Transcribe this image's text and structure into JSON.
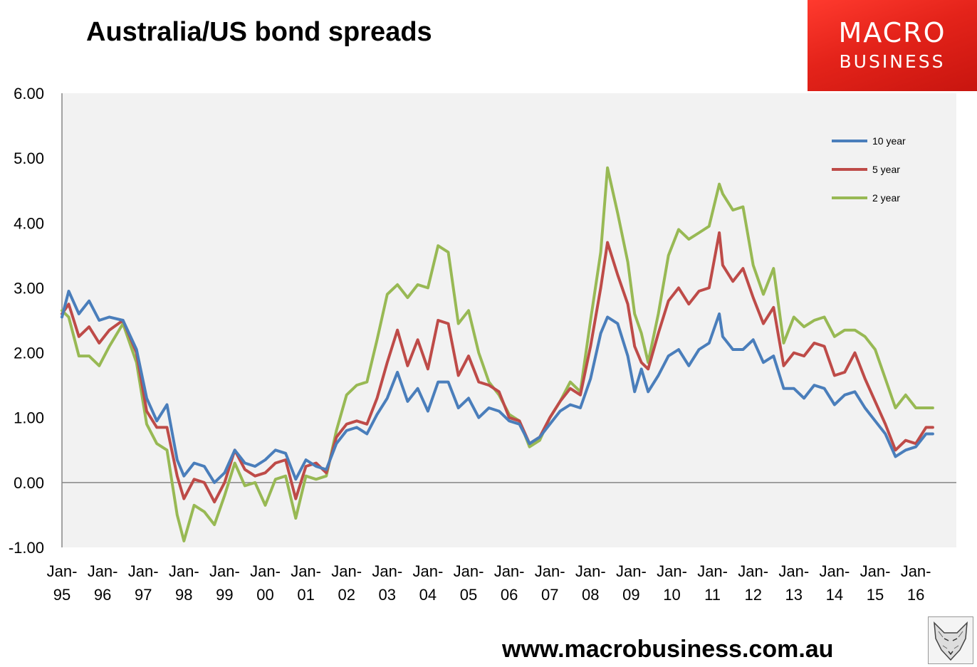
{
  "title": "Australia/US bond spreads",
  "logo": {
    "line1": "MACRO",
    "line2": "BUSINESS"
  },
  "footer_url": "www.macrobusiness.com.au",
  "colors": {
    "series_10y": "#4a7ebb",
    "series_5y": "#be4b48",
    "series_2y": "#98b954",
    "plot_bg": "#f2f2f2",
    "brand_red": "#e4231a"
  },
  "chart_data": {
    "type": "line",
    "title": "Australia/US bond spreads",
    "ylim": [
      -1,
      6
    ],
    "yticks": [
      "6.00",
      "5.00",
      "4.00",
      "3.00",
      "2.00",
      "1.00",
      "0.00",
      "-1.00"
    ],
    "ytick_values": [
      6,
      5,
      4,
      3,
      2,
      1,
      0,
      -1
    ],
    "xticks": [
      {
        "top": "Jan-",
        "bottom": "95"
      },
      {
        "top": "Jan-",
        "bottom": "96"
      },
      {
        "top": "Jan-",
        "bottom": "97"
      },
      {
        "top": "Jan-",
        "bottom": "98"
      },
      {
        "top": "Jan-",
        "bottom": "99"
      },
      {
        "top": "Jan-",
        "bottom": "00"
      },
      {
        "top": "Jan-",
        "bottom": "01"
      },
      {
        "top": "Jan-",
        "bottom": "02"
      },
      {
        "top": "Jan-",
        "bottom": "03"
      },
      {
        "top": "Jan-",
        "bottom": "04"
      },
      {
        "top": "Jan-",
        "bottom": "05"
      },
      {
        "top": "Jan-",
        "bottom": "06"
      },
      {
        "top": "Jan-",
        "bottom": "07"
      },
      {
        "top": "Jan-",
        "bottom": "08"
      },
      {
        "top": "Jan-",
        "bottom": "09"
      },
      {
        "top": "Jan-",
        "bottom": "10"
      },
      {
        "top": "Jan-",
        "bottom": "11"
      },
      {
        "top": "Jan-",
        "bottom": "12"
      },
      {
        "top": "Jan-",
        "bottom": "13"
      },
      {
        "top": "Jan-",
        "bottom": "14"
      },
      {
        "top": "Jan-",
        "bottom": "15"
      },
      {
        "top": "Jan-",
        "bottom": "16"
      }
    ],
    "legend_position": "top-right",
    "grid": false,
    "series": [
      {
        "name": "10 year",
        "color": "#4a7ebb",
        "points": [
          [
            "1995-01",
            2.55
          ],
          [
            "1995-03",
            2.95
          ],
          [
            "1995-06",
            2.6
          ],
          [
            "1995-09",
            2.8
          ],
          [
            "1995-12",
            2.5
          ],
          [
            "1996-03",
            2.55
          ],
          [
            "1996-07",
            2.5
          ],
          [
            "1996-11",
            2.05
          ],
          [
            "1997-02",
            1.3
          ],
          [
            "1997-05",
            0.95
          ],
          [
            "1997-08",
            1.2
          ],
          [
            "1997-11",
            0.35
          ],
          [
            "1998-01",
            0.1
          ],
          [
            "1998-04",
            0.3
          ],
          [
            "1998-07",
            0.25
          ],
          [
            "1998-10",
            0.0
          ],
          [
            "1999-01",
            0.15
          ],
          [
            "1999-04",
            0.5
          ],
          [
            "1999-07",
            0.3
          ],
          [
            "1999-10",
            0.25
          ],
          [
            "2000-01",
            0.35
          ],
          [
            "2000-04",
            0.5
          ],
          [
            "2000-07",
            0.45
          ],
          [
            "2000-10",
            0.05
          ],
          [
            "2001-01",
            0.35
          ],
          [
            "2001-04",
            0.25
          ],
          [
            "2001-07",
            0.2
          ],
          [
            "2001-10",
            0.6
          ],
          [
            "2002-01",
            0.8
          ],
          [
            "2002-04",
            0.85
          ],
          [
            "2002-07",
            0.75
          ],
          [
            "2002-10",
            1.05
          ],
          [
            "2003-01",
            1.3
          ],
          [
            "2003-04",
            1.7
          ],
          [
            "2003-07",
            1.25
          ],
          [
            "2003-10",
            1.45
          ],
          [
            "2004-01",
            1.1
          ],
          [
            "2004-04",
            1.55
          ],
          [
            "2004-07",
            1.55
          ],
          [
            "2004-10",
            1.15
          ],
          [
            "2005-01",
            1.3
          ],
          [
            "2005-04",
            1.0
          ],
          [
            "2005-07",
            1.15
          ],
          [
            "2005-10",
            1.1
          ],
          [
            "2006-01",
            0.95
          ],
          [
            "2006-04",
            0.9
          ],
          [
            "2006-07",
            0.6
          ],
          [
            "2006-10",
            0.7
          ],
          [
            "2007-01",
            0.9
          ],
          [
            "2007-04",
            1.1
          ],
          [
            "2007-07",
            1.2
          ],
          [
            "2007-10",
            1.15
          ],
          [
            "2008-01",
            1.6
          ],
          [
            "2008-04",
            2.3
          ],
          [
            "2008-06",
            2.55
          ],
          [
            "2008-09",
            2.45
          ],
          [
            "2008-12",
            1.95
          ],
          [
            "2009-02",
            1.4
          ],
          [
            "2009-04",
            1.75
          ],
          [
            "2009-06",
            1.4
          ],
          [
            "2009-09",
            1.65
          ],
          [
            "2009-12",
            1.95
          ],
          [
            "2010-03",
            2.05
          ],
          [
            "2010-06",
            1.8
          ],
          [
            "2010-09",
            2.05
          ],
          [
            "2010-12",
            2.15
          ],
          [
            "2011-03",
            2.6
          ],
          [
            "2011-04",
            2.25
          ],
          [
            "2011-07",
            2.05
          ],
          [
            "2011-10",
            2.05
          ],
          [
            "2012-01",
            2.2
          ],
          [
            "2012-04",
            1.85
          ],
          [
            "2012-07",
            1.95
          ],
          [
            "2012-10",
            1.45
          ],
          [
            "2013-01",
            1.45
          ],
          [
            "2013-04",
            1.3
          ],
          [
            "2013-07",
            1.5
          ],
          [
            "2013-10",
            1.45
          ],
          [
            "2014-01",
            1.2
          ],
          [
            "2014-04",
            1.35
          ],
          [
            "2014-07",
            1.4
          ],
          [
            "2014-10",
            1.15
          ],
          [
            "2015-01",
            0.95
          ],
          [
            "2015-04",
            0.75
          ],
          [
            "2015-07",
            0.4
          ],
          [
            "2015-10",
            0.5
          ],
          [
            "2016-01",
            0.55
          ],
          [
            "2016-04",
            0.75
          ],
          [
            "2016-06",
            0.75
          ]
        ]
      },
      {
        "name": "5 year",
        "color": "#be4b48",
        "points": [
          [
            "1995-01",
            2.6
          ],
          [
            "1995-03",
            2.75
          ],
          [
            "1995-06",
            2.25
          ],
          [
            "1995-09",
            2.4
          ],
          [
            "1995-12",
            2.15
          ],
          [
            "1996-03",
            2.35
          ],
          [
            "1996-07",
            2.5
          ],
          [
            "1996-11",
            2.0
          ],
          [
            "1997-02",
            1.1
          ],
          [
            "1997-05",
            0.85
          ],
          [
            "1997-08",
            0.85
          ],
          [
            "1997-11",
            0.1
          ],
          [
            "1998-01",
            -0.25
          ],
          [
            "1998-04",
            0.05
          ],
          [
            "1998-07",
            0.0
          ],
          [
            "1998-10",
            -0.3
          ],
          [
            "1999-01",
            0.0
          ],
          [
            "1999-04",
            0.5
          ],
          [
            "1999-07",
            0.2
          ],
          [
            "1999-10",
            0.1
          ],
          [
            "2000-01",
            0.15
          ],
          [
            "2000-04",
            0.3
          ],
          [
            "2000-07",
            0.35
          ],
          [
            "2000-10",
            -0.25
          ],
          [
            "2001-01",
            0.25
          ],
          [
            "2001-04",
            0.3
          ],
          [
            "2001-07",
            0.15
          ],
          [
            "2001-10",
            0.7
          ],
          [
            "2002-01",
            0.9
          ],
          [
            "2002-04",
            0.95
          ],
          [
            "2002-07",
            0.9
          ],
          [
            "2002-10",
            1.3
          ],
          [
            "2003-01",
            1.85
          ],
          [
            "2003-04",
            2.35
          ],
          [
            "2003-07",
            1.8
          ],
          [
            "2003-10",
            2.2
          ],
          [
            "2004-01",
            1.75
          ],
          [
            "2004-04",
            2.5
          ],
          [
            "2004-07",
            2.45
          ],
          [
            "2004-10",
            1.65
          ],
          [
            "2005-01",
            1.95
          ],
          [
            "2005-04",
            1.55
          ],
          [
            "2005-07",
            1.5
          ],
          [
            "2005-10",
            1.4
          ],
          [
            "2006-01",
            1.0
          ],
          [
            "2006-04",
            0.95
          ],
          [
            "2006-07",
            0.6
          ],
          [
            "2006-10",
            0.7
          ],
          [
            "2007-01",
            1.0
          ],
          [
            "2007-04",
            1.25
          ],
          [
            "2007-07",
            1.45
          ],
          [
            "2007-10",
            1.35
          ],
          [
            "2008-01",
            2.1
          ],
          [
            "2008-04",
            3.0
          ],
          [
            "2008-06",
            3.7
          ],
          [
            "2008-09",
            3.2
          ],
          [
            "2008-12",
            2.75
          ],
          [
            "2009-02",
            2.1
          ],
          [
            "2009-04",
            1.85
          ],
          [
            "2009-06",
            1.75
          ],
          [
            "2009-09",
            2.3
          ],
          [
            "2009-12",
            2.8
          ],
          [
            "2010-03",
            3.0
          ],
          [
            "2010-06",
            2.75
          ],
          [
            "2010-09",
            2.95
          ],
          [
            "2010-12",
            3.0
          ],
          [
            "2011-03",
            3.85
          ],
          [
            "2011-04",
            3.35
          ],
          [
            "2011-07",
            3.1
          ],
          [
            "2011-10",
            3.3
          ],
          [
            "2012-01",
            2.85
          ],
          [
            "2012-04",
            2.45
          ],
          [
            "2012-07",
            2.7
          ],
          [
            "2012-10",
            1.8
          ],
          [
            "2013-01",
            2.0
          ],
          [
            "2013-04",
            1.95
          ],
          [
            "2013-07",
            2.15
          ],
          [
            "2013-10",
            2.1
          ],
          [
            "2014-01",
            1.65
          ],
          [
            "2014-04",
            1.7
          ],
          [
            "2014-07",
            2.0
          ],
          [
            "2014-10",
            1.6
          ],
          [
            "2015-01",
            1.25
          ],
          [
            "2015-04",
            0.9
          ],
          [
            "2015-07",
            0.5
          ],
          [
            "2015-10",
            0.65
          ],
          [
            "2016-01",
            0.6
          ],
          [
            "2016-04",
            0.85
          ],
          [
            "2016-06",
            0.85
          ]
        ]
      },
      {
        "name": "2 year",
        "color": "#98b954",
        "points": [
          [
            "1995-01",
            2.65
          ],
          [
            "1995-03",
            2.55
          ],
          [
            "1995-06",
            1.95
          ],
          [
            "1995-09",
            1.95
          ],
          [
            "1995-12",
            1.8
          ],
          [
            "1996-03",
            2.1
          ],
          [
            "1996-07",
            2.45
          ],
          [
            "1996-11",
            1.85
          ],
          [
            "1997-02",
            0.9
          ],
          [
            "1997-05",
            0.6
          ],
          [
            "1997-08",
            0.5
          ],
          [
            "1997-11",
            -0.5
          ],
          [
            "1998-01",
            -0.9
          ],
          [
            "1998-04",
            -0.35
          ],
          [
            "1998-07",
            -0.45
          ],
          [
            "1998-10",
            -0.65
          ],
          [
            "1999-01",
            -0.2
          ],
          [
            "1999-04",
            0.3
          ],
          [
            "1999-07",
            -0.05
          ],
          [
            "1999-10",
            0.0
          ],
          [
            "2000-01",
            -0.35
          ],
          [
            "2000-04",
            0.05
          ],
          [
            "2000-07",
            0.1
          ],
          [
            "2000-10",
            -0.55
          ],
          [
            "2001-01",
            0.1
          ],
          [
            "2001-04",
            0.05
          ],
          [
            "2001-07",
            0.1
          ],
          [
            "2001-10",
            0.8
          ],
          [
            "2002-01",
            1.35
          ],
          [
            "2002-04",
            1.5
          ],
          [
            "2002-07",
            1.55
          ],
          [
            "2002-10",
            2.2
          ],
          [
            "2003-01",
            2.9
          ],
          [
            "2003-04",
            3.05
          ],
          [
            "2003-07",
            2.85
          ],
          [
            "2003-10",
            3.05
          ],
          [
            "2004-01",
            3.0
          ],
          [
            "2004-04",
            3.65
          ],
          [
            "2004-07",
            3.55
          ],
          [
            "2004-10",
            2.45
          ],
          [
            "2005-01",
            2.65
          ],
          [
            "2005-04",
            2.0
          ],
          [
            "2005-07",
            1.55
          ],
          [
            "2005-10",
            1.35
          ],
          [
            "2006-01",
            1.05
          ],
          [
            "2006-04",
            0.95
          ],
          [
            "2006-07",
            0.55
          ],
          [
            "2006-10",
            0.65
          ],
          [
            "2007-01",
            1.0
          ],
          [
            "2007-04",
            1.25
          ],
          [
            "2007-07",
            1.55
          ],
          [
            "2007-10",
            1.4
          ],
          [
            "2008-01",
            2.5
          ],
          [
            "2008-04",
            3.55
          ],
          [
            "2008-06",
            4.85
          ],
          [
            "2008-09",
            4.15
          ],
          [
            "2008-12",
            3.4
          ],
          [
            "2009-02",
            2.6
          ],
          [
            "2009-04",
            2.3
          ],
          [
            "2009-06",
            1.85
          ],
          [
            "2009-09",
            2.6
          ],
          [
            "2009-12",
            3.5
          ],
          [
            "2010-03",
            3.9
          ],
          [
            "2010-06",
            3.75
          ],
          [
            "2010-09",
            3.85
          ],
          [
            "2010-12",
            3.95
          ],
          [
            "2011-03",
            4.6
          ],
          [
            "2011-04",
            4.45
          ],
          [
            "2011-07",
            4.2
          ],
          [
            "2011-10",
            4.25
          ],
          [
            "2012-01",
            3.35
          ],
          [
            "2012-04",
            2.9
          ],
          [
            "2012-07",
            3.3
          ],
          [
            "2012-10",
            2.15
          ],
          [
            "2013-01",
            2.55
          ],
          [
            "2013-04",
            2.4
          ],
          [
            "2013-07",
            2.5
          ],
          [
            "2013-10",
            2.55
          ],
          [
            "2014-01",
            2.25
          ],
          [
            "2014-04",
            2.35
          ],
          [
            "2014-07",
            2.35
          ],
          [
            "2014-10",
            2.25
          ],
          [
            "2015-01",
            2.05
          ],
          [
            "2015-04",
            1.6
          ],
          [
            "2015-07",
            1.15
          ],
          [
            "2015-10",
            1.35
          ],
          [
            "2016-01",
            1.15
          ],
          [
            "2016-04",
            1.15
          ],
          [
            "2016-06",
            1.15
          ]
        ]
      }
    ]
  }
}
